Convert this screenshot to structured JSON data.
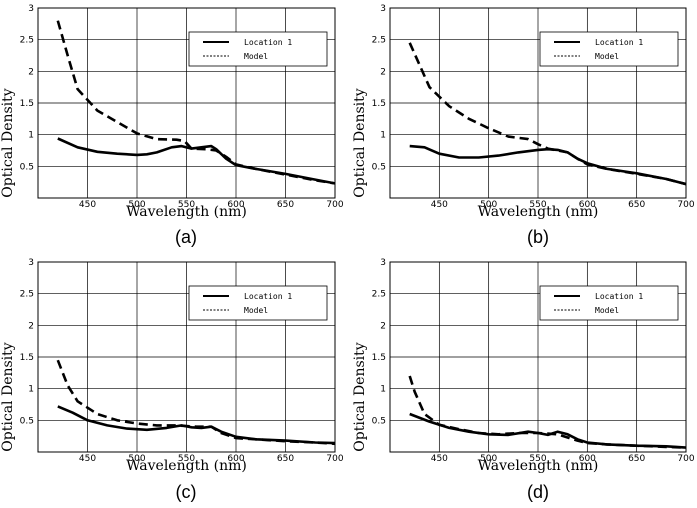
{
  "figure": {
    "panel_labels": [
      "(a)",
      "(b)",
      "(c)",
      "(d)"
    ]
  },
  "chart_data": [
    {
      "type": "line",
      "panel": "(a)",
      "xlabel": "Wavelength (nm)",
      "ylabel": "Optical Density",
      "xlim": [
        400,
        700
      ],
      "ylim": [
        0,
        3
      ],
      "xticks": [
        450,
        500,
        550,
        600,
        650,
        700
      ],
      "yticks": [
        0.5,
        1,
        1.5,
        2,
        2.5,
        3
      ],
      "grid": true,
      "legend_position": "top-right",
      "series": [
        {
          "name": "Location 1",
          "style": "solid",
          "x": [
            420,
            440,
            460,
            480,
            500,
            510,
            520,
            535,
            545,
            555,
            565,
            575,
            580,
            590,
            600,
            620,
            650,
            680,
            700
          ],
          "y": [
            0.94,
            0.8,
            0.73,
            0.7,
            0.68,
            0.69,
            0.72,
            0.8,
            0.82,
            0.78,
            0.8,
            0.82,
            0.77,
            0.62,
            0.52,
            0.46,
            0.38,
            0.29,
            0.23
          ]
        },
        {
          "name": "Model",
          "style": "dashed",
          "x": [
            420,
            430,
            440,
            460,
            480,
            500,
            520,
            540,
            548,
            555,
            570,
            580,
            590,
            600,
            620,
            650,
            680,
            700
          ],
          "y": [
            2.8,
            2.25,
            1.72,
            1.38,
            1.2,
            1.02,
            0.93,
            0.92,
            0.9,
            0.78,
            0.77,
            0.75,
            0.65,
            0.53,
            0.46,
            0.37,
            0.28,
            0.23
          ]
        }
      ]
    },
    {
      "type": "line",
      "panel": "(b)",
      "xlabel": "Wavelength (nm)",
      "ylabel": "Optical Density",
      "xlim": [
        400,
        700
      ],
      "ylim": [
        0,
        3
      ],
      "xticks": [
        450,
        500,
        550,
        600,
        650,
        700
      ],
      "yticks": [
        0.5,
        1,
        1.5,
        2,
        2.5,
        3
      ],
      "grid": true,
      "legend_position": "top-right",
      "series": [
        {
          "name": "Location 1",
          "style": "solid",
          "x": [
            420,
            435,
            450,
            470,
            490,
            510,
            530,
            550,
            560,
            570,
            580,
            590,
            600,
            620,
            650,
            680,
            700
          ],
          "y": [
            0.82,
            0.8,
            0.7,
            0.64,
            0.64,
            0.67,
            0.72,
            0.76,
            0.77,
            0.76,
            0.72,
            0.62,
            0.55,
            0.46,
            0.39,
            0.3,
            0.22
          ]
        },
        {
          "name": "Model",
          "style": "dashed",
          "x": [
            420,
            430,
            440,
            460,
            480,
            500,
            520,
            540,
            550,
            560,
            580,
            590,
            600,
            620,
            650,
            680,
            700
          ],
          "y": [
            2.45,
            2.1,
            1.75,
            1.45,
            1.25,
            1.1,
            0.97,
            0.93,
            0.85,
            0.78,
            0.72,
            0.62,
            0.53,
            0.46,
            0.38,
            0.3,
            0.22
          ]
        }
      ]
    },
    {
      "type": "line",
      "panel": "(c)",
      "xlabel": "Wavelength (nm)",
      "ylabel": "Optical Density",
      "xlim": [
        400,
        700
      ],
      "ylim": [
        0,
        3
      ],
      "xticks": [
        450,
        500,
        550,
        600,
        650,
        700
      ],
      "yticks": [
        0.5,
        1,
        1.5,
        2,
        2.5,
        3
      ],
      "grid": true,
      "legend_position": "top-right",
      "series": [
        {
          "name": "Location 1",
          "style": "solid",
          "x": [
            420,
            435,
            450,
            470,
            490,
            510,
            530,
            545,
            555,
            565,
            575,
            585,
            600,
            620,
            650,
            680,
            700
          ],
          "y": [
            0.72,
            0.62,
            0.5,
            0.42,
            0.37,
            0.35,
            0.38,
            0.42,
            0.39,
            0.38,
            0.4,
            0.32,
            0.24,
            0.2,
            0.18,
            0.15,
            0.14
          ]
        },
        {
          "name": "Model",
          "style": "dashed",
          "x": [
            420,
            430,
            440,
            460,
            480,
            500,
            520,
            540,
            560,
            575,
            585,
            600,
            620,
            650,
            680,
            700
          ],
          "y": [
            1.45,
            1.05,
            0.8,
            0.6,
            0.5,
            0.45,
            0.42,
            0.42,
            0.4,
            0.4,
            0.3,
            0.22,
            0.2,
            0.17,
            0.15,
            0.13
          ]
        }
      ]
    },
    {
      "type": "line",
      "panel": "(d)",
      "xlabel": "Wavelength (nm)",
      "ylabel": "Optical Density",
      "xlim": [
        400,
        700
      ],
      "ylim": [
        0,
        3
      ],
      "xticks": [
        450,
        500,
        550,
        600,
        650,
        700
      ],
      "yticks": [
        0.5,
        1,
        1.5,
        2,
        2.5,
        3
      ],
      "grid": true,
      "legend_position": "top-right",
      "series": [
        {
          "name": "Location 1",
          "style": "solid",
          "x": [
            420,
            440,
            460,
            480,
            500,
            520,
            540,
            550,
            560,
            570,
            580,
            590,
            600,
            620,
            650,
            680,
            700
          ],
          "y": [
            0.6,
            0.48,
            0.38,
            0.32,
            0.28,
            0.27,
            0.32,
            0.3,
            0.27,
            0.32,
            0.28,
            0.2,
            0.15,
            0.12,
            0.1,
            0.09,
            0.07
          ]
        },
        {
          "name": "Model",
          "style": "dashed",
          "x": [
            420,
            425,
            435,
            450,
            470,
            490,
            510,
            530,
            550,
            570,
            590,
            600,
            620,
            650,
            680,
            700
          ],
          "y": [
            1.2,
            0.95,
            0.6,
            0.43,
            0.36,
            0.3,
            0.28,
            0.3,
            0.3,
            0.28,
            0.18,
            0.14,
            0.12,
            0.1,
            0.08,
            0.07
          ]
        }
      ]
    }
  ]
}
